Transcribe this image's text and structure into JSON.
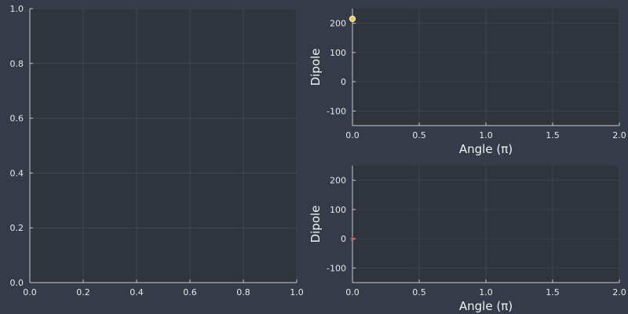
{
  "colors": {
    "background": "#353b48",
    "plot_background": "#30343c",
    "text": "#e8e8e8",
    "grid": "#4a505b",
    "marker_top": "#f2c94c",
    "marker_bottom": "#e05a4f"
  },
  "chart_data": [
    {
      "type": "scatter",
      "title": "",
      "xlabel": "",
      "ylabel": "",
      "xlim": [
        0,
        1
      ],
      "ylim": [
        0,
        1
      ],
      "xticks": [
        "0.0",
        "0.2",
        "0.4",
        "0.6",
        "0.8",
        "1.0"
      ],
      "yticks": [
        "0.0",
        "0.2",
        "0.4",
        "0.6",
        "0.8",
        "1.0"
      ],
      "grid": true,
      "series": []
    },
    {
      "type": "scatter",
      "title": "",
      "xlabel": "Angle (π)",
      "ylabel": "Dipole",
      "xlim": [
        0,
        2
      ],
      "ylim": [
        -150,
        250
      ],
      "xticks": [
        "0.0",
        "0.5",
        "1.0",
        "1.5",
        "2.0"
      ],
      "yticks": [
        "-100",
        "0",
        "100",
        "200"
      ],
      "grid": true,
      "series": [
        {
          "x": [
            0.0
          ],
          "y": [
            215
          ],
          "color": "#f2c94c",
          "marker": "circle"
        }
      ]
    },
    {
      "type": "scatter",
      "title": "",
      "xlabel": "Angle (π)",
      "ylabel": "Dipole",
      "xlim": [
        0,
        2
      ],
      "ylim": [
        -150,
        250
      ],
      "xticks": [
        "0.0",
        "0.5",
        "1.0",
        "1.5",
        "2.0"
      ],
      "yticks": [
        "-100",
        "0",
        "100",
        "200"
      ],
      "grid": true,
      "series": [
        {
          "x": [
            0.0
          ],
          "y": [
            0
          ],
          "color": "#e05a4f",
          "marker": "star"
        }
      ]
    }
  ]
}
